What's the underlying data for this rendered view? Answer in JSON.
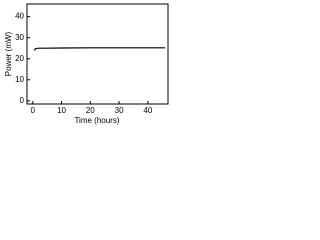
{
  "chart_data": {
    "type": "line",
    "x_label": "Time (hours)",
    "y_label": "Power (mW)",
    "x": [
      0.5,
      1,
      2,
      5,
      10,
      20,
      30,
      40,
      46
    ],
    "series": [
      {
        "color": "#000000",
        "values": [
          24,
          24.8,
          25,
          25,
          25.1,
          25.2,
          25.2,
          25.2,
          25.2
        ]
      }
    ],
    "xlim": [
      -2,
      47
    ],
    "xticks": [
      0,
      10,
      20,
      30,
      40
    ],
    "ylim": [
      -1.5,
      46
    ],
    "yticks": [
      0,
      10,
      20,
      30,
      40
    ],
    "grid": false
  }
}
